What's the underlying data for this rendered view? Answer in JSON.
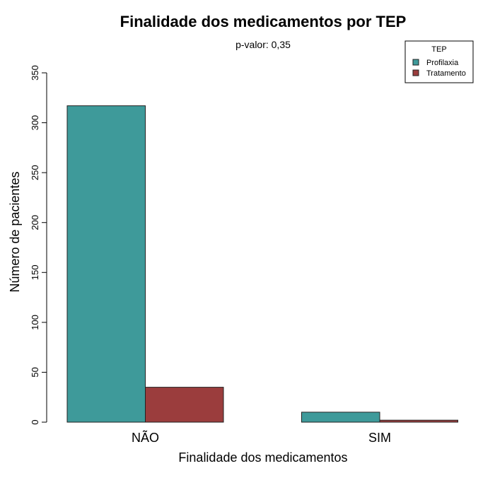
{
  "chart_data": {
    "type": "bar",
    "title": "Finalidade dos medicamentos por TEP",
    "subtitle": "p-valor: 0,35",
    "xlabel": "Finalidade dos medicamentos",
    "ylabel": "Número de pacientes",
    "categories": [
      "NÃO",
      "SIM"
    ],
    "series": [
      {
        "name": "Profilaxia",
        "values": [
          317,
          10
        ],
        "color": "#3e9a9a"
      },
      {
        "name": "Tratamento",
        "values": [
          35,
          2
        ],
        "color": "#9b3d3d"
      }
    ],
    "ylim": [
      0,
      350
    ],
    "yticks": [
      0,
      50,
      100,
      150,
      200,
      250,
      300,
      350
    ],
    "legend": {
      "title": "TEP",
      "position": "top-right"
    },
    "grid": false
  }
}
